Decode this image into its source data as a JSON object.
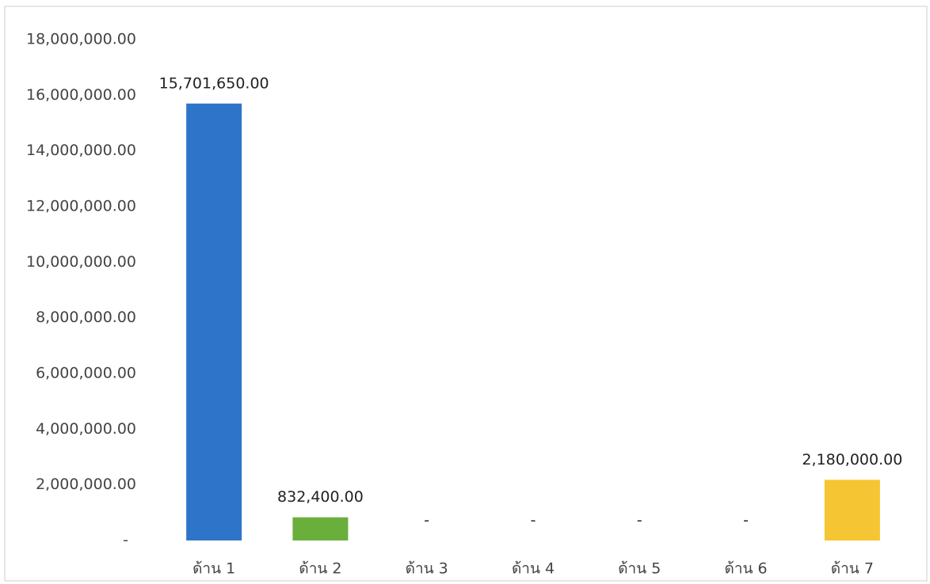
{
  "chart_data": {
    "type": "bar",
    "categories": [
      "ด้าน 1",
      "ด้าน 2",
      "ด้าน 3",
      "ด้าน 4",
      "ด้าน 5",
      "ด้าน 6",
      "ด้าน 7"
    ],
    "values": [
      15701650,
      832400,
      0,
      0,
      0,
      0,
      2180000
    ],
    "value_labels": [
      "15,701,650.00",
      "832,400.00",
      "-",
      "-",
      "-",
      "-",
      "2,180,000.00"
    ],
    "colors": [
      "#2e75c9",
      "#6aae3c",
      null,
      null,
      null,
      null,
      "#f6c533"
    ],
    "ylim": [
      0,
      18000000
    ],
    "yticks": [
      {
        "value": 0,
        "label": "-"
      },
      {
        "value": 2000000,
        "label": "2,000,000.00"
      },
      {
        "value": 4000000,
        "label": "4,000,000.00"
      },
      {
        "value": 6000000,
        "label": "6,000,000.00"
      },
      {
        "value": 8000000,
        "label": "8,000,000.00"
      },
      {
        "value": 10000000,
        "label": "10,000,000.00"
      },
      {
        "value": 12000000,
        "label": "12,000,000.00"
      },
      {
        "value": 14000000,
        "label": "14,000,000.00"
      },
      {
        "value": 16000000,
        "label": "16,000,000.00"
      },
      {
        "value": 18000000,
        "label": "18,000,000.00"
      }
    ],
    "grid": false
  }
}
